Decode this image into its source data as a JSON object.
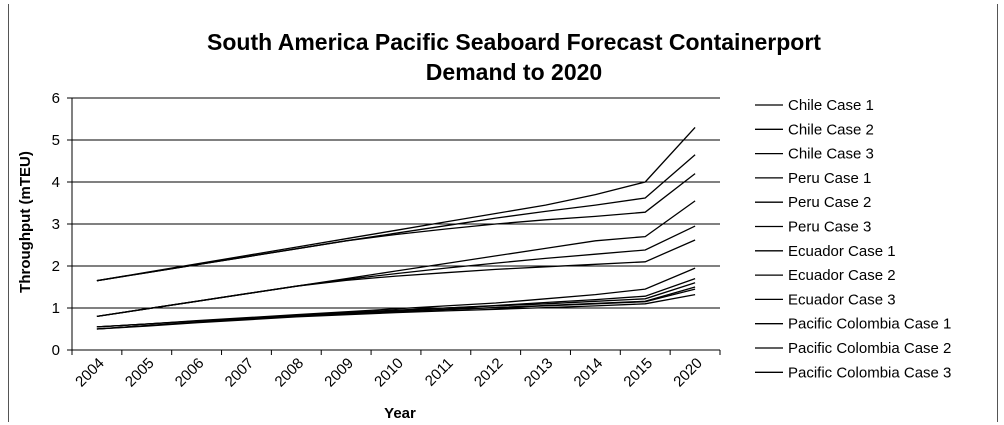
{
  "chart_data": {
    "type": "line",
    "title": [
      "South America Pacific Seaboard Forecast Containerport",
      "Demand to 2020"
    ],
    "xlabel": "Year",
    "ylabel": "Throughput (mTEU)",
    "ylim": [
      0,
      6
    ],
    "yticks": [
      0,
      1,
      2,
      3,
      4,
      5,
      6
    ],
    "grid": "horizontal",
    "legend": "right",
    "categories": [
      "2004",
      "2005",
      "2006",
      "2007",
      "2008",
      "2009",
      "2010",
      "2011",
      "2012",
      "2013",
      "2014",
      "2015",
      "2020"
    ],
    "series": [
      {
        "name": "Chile Case 1",
        "values": [
          1.65,
          1.85,
          2.05,
          2.25,
          2.45,
          2.65,
          2.85,
          3.05,
          3.25,
          3.45,
          3.7,
          4.0,
          5.3
        ]
      },
      {
        "name": "Chile Case 2",
        "values": [
          1.65,
          1.84,
          2.03,
          2.22,
          2.41,
          2.6,
          2.78,
          2.96,
          3.14,
          3.3,
          3.45,
          3.62,
          4.65
        ]
      },
      {
        "name": "Chile Case 3",
        "values": [
          1.65,
          1.84,
          2.03,
          2.22,
          2.41,
          2.6,
          2.75,
          2.88,
          3.0,
          3.1,
          3.18,
          3.28,
          4.2
        ]
      },
      {
        "name": "Peru Case 1",
        "values": [
          0.8,
          0.98,
          1.16,
          1.34,
          1.52,
          1.7,
          1.88,
          2.06,
          2.24,
          2.42,
          2.6,
          2.7,
          3.55
        ]
      },
      {
        "name": "Peru Case 2",
        "values": [
          0.8,
          0.98,
          1.16,
          1.34,
          1.52,
          1.68,
          1.82,
          1.95,
          2.07,
          2.18,
          2.28,
          2.38,
          2.95
        ]
      },
      {
        "name": "Peru Case 3",
        "values": [
          0.8,
          0.98,
          1.16,
          1.34,
          1.52,
          1.66,
          1.76,
          1.84,
          1.92,
          1.98,
          2.04,
          2.1,
          2.62
        ]
      },
      {
        "name": "Ecuador Case 1",
        "values": [
          0.55,
          0.62,
          0.7,
          0.77,
          0.84,
          0.91,
          0.98,
          1.05,
          1.12,
          1.22,
          1.32,
          1.45,
          1.95
        ]
      },
      {
        "name": "Ecuador Case 2",
        "values": [
          0.55,
          0.62,
          0.69,
          0.76,
          0.83,
          0.89,
          0.95,
          1.0,
          1.06,
          1.13,
          1.2,
          1.28,
          1.7
        ]
      },
      {
        "name": "Ecuador Case 3",
        "values": [
          0.55,
          0.62,
          0.69,
          0.76,
          0.82,
          0.87,
          0.92,
          0.97,
          1.01,
          1.06,
          1.11,
          1.16,
          1.5
        ]
      },
      {
        "name": "Pacific Colombia Case 1",
        "values": [
          0.5,
          0.58,
          0.66,
          0.74,
          0.82,
          0.88,
          0.94,
          1.0,
          1.05,
          1.1,
          1.16,
          1.22,
          1.6
        ]
      },
      {
        "name": "Pacific Colombia Case 2",
        "values": [
          0.5,
          0.58,
          0.66,
          0.73,
          0.8,
          0.86,
          0.91,
          0.96,
          1.01,
          1.05,
          1.1,
          1.15,
          1.45
        ]
      },
      {
        "name": "Pacific Colombia Case 3",
        "values": [
          0.5,
          0.57,
          0.65,
          0.72,
          0.79,
          0.84,
          0.89,
          0.93,
          0.97,
          1.01,
          1.05,
          1.1,
          1.32
        ]
      }
    ],
    "line_color": "#000000",
    "grid_color": "#000000"
  }
}
